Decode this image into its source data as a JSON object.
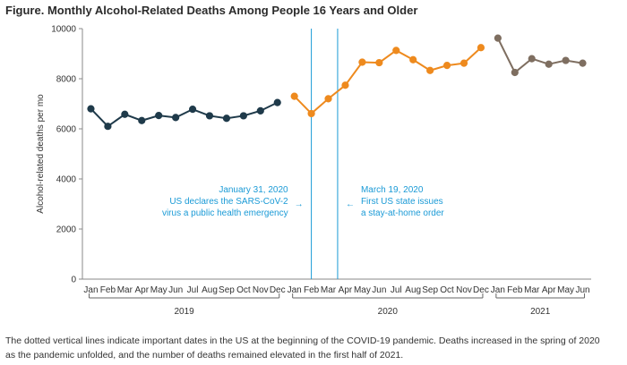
{
  "figure": {
    "title": "Figure. Monthly Alcohol-Related Deaths Among People 16 Years and Older",
    "caption_line1": "The dotted vertical lines indicate important dates in the US at the beginning of the COVID-19 pandemic. Deaths increased in the spring of 2020",
    "caption_line2": "as the pandemic unfolded, and the number of deaths remained elevated in the first half of 2021."
  },
  "chart_data": {
    "type": "line",
    "title": "Monthly Alcohol-Related Deaths Among People 16 Years and Older",
    "ylabel": "Alcohol-related deaths per mo",
    "xlabel": "",
    "ylim": [
      0,
      10000
    ],
    "yticks": [
      0,
      2000,
      4000,
      6000,
      8000,
      10000
    ],
    "ytick_labels": [
      "0",
      "2000",
      "4000",
      "6000",
      "8000",
      "10000"
    ],
    "months": [
      "Jan",
      "Feb",
      "Mar",
      "Apr",
      "May",
      "Jun",
      "Jul",
      "Aug",
      "Sep",
      "Oct",
      "Nov",
      "Dec",
      "Jan",
      "Feb",
      "Mar",
      "Apr",
      "May",
      "Jun",
      "Jul",
      "Aug",
      "Sep",
      "Oct",
      "Nov",
      "Dec",
      "Jan",
      "Feb",
      "Mar",
      "Apr",
      "May",
      "Jun"
    ],
    "series": [
      {
        "name": "2019",
        "color": "#1f3a4a",
        "start": 0,
        "values": [
          6800,
          6100,
          6580,
          6330,
          6530,
          6450,
          6780,
          6520,
          6420,
          6520,
          6720,
          7050
        ]
      },
      {
        "name": "2020",
        "color": "#ee8a1e",
        "start": 12,
        "values": [
          7300,
          6610,
          7200,
          7740,
          8660,
          8640,
          9130,
          8760,
          8330,
          8530,
          8620,
          9240
        ]
      },
      {
        "name": "2021",
        "color": "#7e6e60",
        "start": 24,
        "values": [
          9620,
          8250,
          8800,
          8580,
          8730,
          8620
        ]
      }
    ],
    "years": [
      "2019",
      "2020",
      "2021"
    ],
    "annotations": [
      {
        "date_label": "January 31, 2020",
        "lines": [
          "January 31, 2020",
          "US declares the SARS-CoV-2",
          "virus a public health emergency"
        ],
        "x_position": 13.0,
        "arrow": "→"
      },
      {
        "date_label": "March 19, 2020",
        "lines": [
          "March 19, 2020",
          "First US state issues",
          "a stay-at-home order"
        ],
        "x_position": 14.55,
        "arrow": "←"
      }
    ],
    "annotation_color": "#1a9ad6"
  }
}
